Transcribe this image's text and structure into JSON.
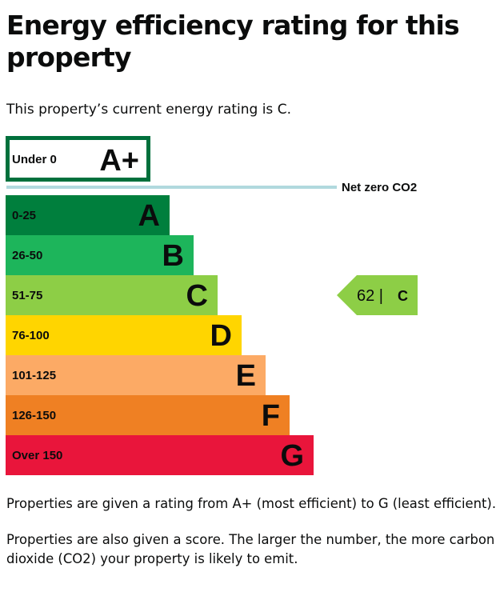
{
  "page": {
    "title": "Energy efficiency rating for this property",
    "intro": "This property’s current energy rating is C.",
    "note_1": "Properties are given a rating from A+ (most efficient) to G (least efficient).",
    "note_2": "Properties are also given a score. The larger the number, the more carbon dioxide (CO2) your property is likely to emit."
  },
  "chart_data": {
    "type": "bar",
    "top_band": {
      "range": "Under 0",
      "letter": "A+",
      "border_color": "#00703c"
    },
    "net_zero": {
      "label": "Net zero CO2",
      "line_color": "#b1d9de"
    },
    "bands": [
      {
        "letter": "A",
        "range": "0-25",
        "color": "#007f3d"
      },
      {
        "letter": "B",
        "range": "26-50",
        "color": "#1db55b"
      },
      {
        "letter": "C",
        "range": "51-75",
        "color": "#8dce46"
      },
      {
        "letter": "D",
        "range": "76-100",
        "color": "#ffd500"
      },
      {
        "letter": "E",
        "range": "101-125",
        "color": "#fcaa65"
      },
      {
        "letter": "F",
        "range": "126-150",
        "color": "#ef8023"
      },
      {
        "letter": "G",
        "range": "Over 150",
        "color": "#e9153b"
      }
    ],
    "current": {
      "score": 62,
      "score_label": "62 |",
      "letter": "C",
      "band_index": 2,
      "color": "#8dce46"
    }
  }
}
